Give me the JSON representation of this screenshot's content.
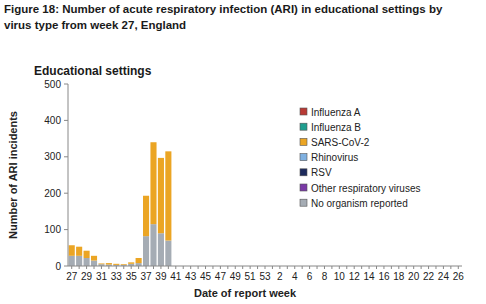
{
  "chart_data": {
    "type": "bar",
    "stacked": true,
    "title": "Figure 18: Number of acute respiratory infection (ARI) in educational settings by virus type from week 27, England",
    "subtitle": "Educational settings",
    "x_label": "Date of report week",
    "y_label": "Number of ARI incidents",
    "categories": [
      "27",
      null,
      "29",
      null,
      "31",
      null,
      "33",
      null,
      "35",
      null,
      "37",
      null,
      "39",
      null,
      "41",
      null,
      "43",
      null,
      "45",
      null,
      "47",
      null,
      "49",
      null,
      "51",
      null,
      "53",
      null,
      "2",
      null,
      "4",
      null,
      "6",
      null,
      "8",
      null,
      "10",
      null,
      "12",
      null,
      "14",
      null,
      "16",
      null,
      "18",
      null,
      "20",
      null,
      "22",
      null,
      "24",
      null,
      "26"
    ],
    "ylim": [
      0,
      500
    ],
    "yticks": [
      0,
      100,
      200,
      300,
      400,
      500
    ],
    "grid": false,
    "legend": "top-right",
    "series": [
      {
        "name": "Influenza A",
        "color": "#b83a35",
        "values": [
          0,
          0,
          0,
          0,
          0,
          0,
          0,
          0,
          0,
          0,
          0,
          0,
          0,
          0,
          null,
          null,
          null,
          null,
          null,
          null,
          null,
          null,
          null,
          null,
          null,
          null,
          null,
          null,
          null,
          null,
          null,
          null,
          null,
          null,
          null,
          null,
          null,
          null,
          null,
          null,
          null,
          null,
          null,
          null,
          null,
          null,
          null,
          null,
          null,
          null,
          null,
          null,
          null
        ]
      },
      {
        "name": "Influenza B",
        "color": "#1f9e8f",
        "values": [
          0,
          0,
          0,
          0,
          0,
          0,
          0,
          0,
          0,
          0,
          0,
          0,
          0,
          0,
          null,
          null,
          null,
          null,
          null,
          null,
          null,
          null,
          null,
          null,
          null,
          null,
          null,
          null,
          null,
          null,
          null,
          null,
          null,
          null,
          null,
          null,
          null,
          null,
          null,
          null,
          null,
          null,
          null,
          null,
          null,
          null,
          null,
          null,
          null,
          null,
          null,
          null,
          null
        ]
      },
      {
        "name": "SARS-CoV-2",
        "color": "#eba524",
        "values": [
          29,
          25,
          20,
          13,
          2,
          4,
          3,
          2,
          4,
          14,
          111,
          225,
          207,
          245,
          null,
          null,
          null,
          null,
          null,
          null,
          null,
          null,
          null,
          null,
          null,
          null,
          null,
          null,
          null,
          null,
          null,
          null,
          null,
          null,
          null,
          null,
          null,
          null,
          null,
          null,
          null,
          null,
          null,
          null,
          null,
          null,
          null,
          null,
          null,
          null,
          null,
          null,
          null
        ]
      },
      {
        "name": "Rhinovirus",
        "color": "#7fb0e0",
        "values": [
          0,
          0,
          0,
          0,
          0,
          0,
          0,
          0,
          0,
          0,
          0,
          0,
          0,
          0,
          null,
          null,
          null,
          null,
          null,
          null,
          null,
          null,
          null,
          null,
          null,
          null,
          null,
          null,
          null,
          null,
          null,
          null,
          null,
          null,
          null,
          null,
          null,
          null,
          null,
          null,
          null,
          null,
          null,
          null,
          null,
          null,
          null,
          null,
          null,
          null,
          null,
          null,
          null
        ]
      },
      {
        "name": "RSV",
        "color": "#1d2a5c",
        "values": [
          0,
          0,
          0,
          0,
          0,
          0,
          0,
          0,
          0,
          0,
          0,
          0,
          0,
          0,
          null,
          null,
          null,
          null,
          null,
          null,
          null,
          null,
          null,
          null,
          null,
          null,
          null,
          null,
          null,
          null,
          null,
          null,
          null,
          null,
          null,
          null,
          null,
          null,
          null,
          null,
          null,
          null,
          null,
          null,
          null,
          null,
          null,
          null,
          null,
          null,
          null,
          null,
          null
        ]
      },
      {
        "name": "Other respiratory viruses",
        "color": "#7a3aa6",
        "values": [
          0,
          0,
          0,
          0,
          0,
          0,
          0,
          0,
          0,
          0,
          0,
          0,
          0,
          0,
          null,
          null,
          null,
          null,
          null,
          null,
          null,
          null,
          null,
          null,
          null,
          null,
          null,
          null,
          null,
          null,
          null,
          null,
          null,
          null,
          null,
          null,
          null,
          null,
          null,
          null,
          null,
          null,
          null,
          null,
          null,
          null,
          null,
          null,
          null,
          null,
          null,
          null,
          null
        ]
      },
      {
        "name": "No organism reported",
        "color": "#a5acb4",
        "values": [
          28,
          28,
          22,
          15,
          5,
          4,
          3,
          3,
          6,
          8,
          82,
          115,
          90,
          70,
          null,
          null,
          null,
          null,
          null,
          null,
          null,
          null,
          null,
          null,
          null,
          null,
          null,
          null,
          null,
          null,
          null,
          null,
          null,
          null,
          null,
          null,
          null,
          null,
          null,
          null,
          null,
          null,
          null,
          null,
          null,
          null,
          null,
          null,
          null,
          null,
          null,
          null,
          null
        ]
      }
    ]
  }
}
